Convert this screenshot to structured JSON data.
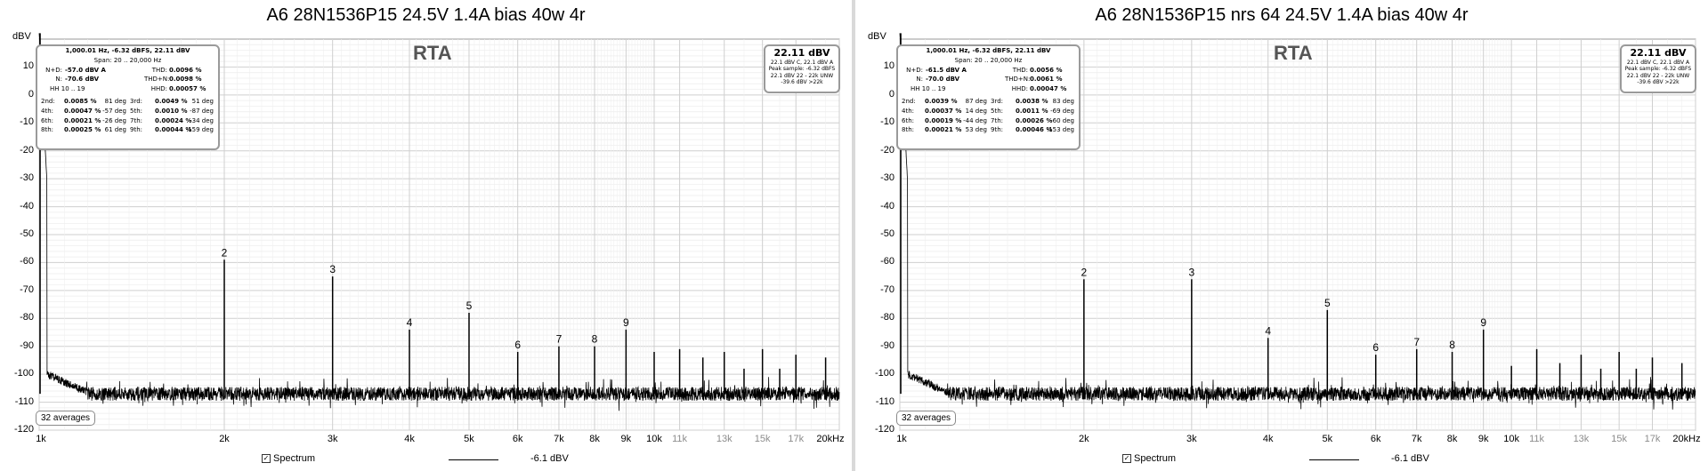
{
  "chart_data": [
    {
      "type": "line",
      "title": "A6 28N1536P15 24.5V 1.4A bias 40w 4r",
      "ylabel": "dBV",
      "xscale": "log",
      "xlim": [
        1000,
        20000
      ],
      "ylim": [
        -120,
        20
      ],
      "yticks": [
        10,
        0,
        -10,
        -20,
        -30,
        -40,
        -50,
        -60,
        -70,
        -80,
        -90,
        -100,
        -110,
        -120
      ],
      "xticks": [
        {
          "v": 1000,
          "label": "1k"
        },
        {
          "v": 2000,
          "label": "2k"
        },
        {
          "v": 3000,
          "label": "3k"
        },
        {
          "v": 4000,
          "label": "4k"
        },
        {
          "v": 5000,
          "label": "5k"
        },
        {
          "v": 6000,
          "label": "6k"
        },
        {
          "v": 7000,
          "label": "7k"
        },
        {
          "v": 8000,
          "label": "8k"
        },
        {
          "v": 9000,
          "label": "9k"
        },
        {
          "v": 10000,
          "label": "10k"
        },
        {
          "v": 11000,
          "label": "11k",
          "grey": true
        },
        {
          "v": 13000,
          "label": "13k",
          "grey": true
        },
        {
          "v": 15000,
          "label": "15k",
          "grey": true
        },
        {
          "v": 17000,
          "label": "17k",
          "grey": true
        },
        {
          "v": 20000,
          "label": "20kHz"
        }
      ],
      "grid": true,
      "rta_label": "RTA",
      "noise_floor": -107,
      "fundamental": {
        "x": 1000,
        "y": 22.11
      },
      "harmonics": [
        {
          "x": 2000,
          "y": -59,
          "label": "2"
        },
        {
          "x": 3000,
          "y": -65,
          "label": "3"
        },
        {
          "x": 4000,
          "y": -84,
          "label": "4"
        },
        {
          "x": 5000,
          "y": -78,
          "label": "5"
        },
        {
          "x": 6000,
          "y": -92,
          "label": "6"
        },
        {
          "x": 7000,
          "y": -90,
          "label": "7"
        },
        {
          "x": 8000,
          "y": -90,
          "label": "8"
        },
        {
          "x": 9000,
          "y": -84,
          "label": "9"
        },
        {
          "x": 10000,
          "y": -92,
          "label": ""
        },
        {
          "x": 11000,
          "y": -91,
          "label": ""
        },
        {
          "x": 12000,
          "y": -94,
          "label": ""
        },
        {
          "x": 13000,
          "y": -92,
          "label": ""
        },
        {
          "x": 14000,
          "y": -98,
          "label": ""
        },
        {
          "x": 15000,
          "y": -91,
          "label": ""
        },
        {
          "x": 16000,
          "y": -98,
          "label": ""
        },
        {
          "x": 17000,
          "y": -93,
          "label": ""
        },
        {
          "x": 19000,
          "y": -94,
          "label": ""
        }
      ],
      "series": [
        {
          "name": "Spectrum",
          "value_label": "-6.1 dBV"
        }
      ],
      "averages": "32 averages",
      "info": {
        "header": "1,000.01 Hz, -6.32 dBFS, 22.11 dBV",
        "span": "Span: 20 .. 20,000 Hz",
        "rows": [
          [
            "N+D:",
            "-57.0 dBV A",
            "THD:",
            "0.0096 %"
          ],
          [
            "N:",
            "-70.6 dBV",
            "THD+N:",
            "0.0098 %"
          ],
          [
            "HH 10 .. 19",
            "",
            "HHD:",
            "0.00057 %"
          ]
        ],
        "harm": [
          [
            "2nd:",
            "0.0085 %",
            "81 deg",
            "3rd:",
            "0.0049 %",
            "51 deg"
          ],
          [
            "4th:",
            "0.00047 %",
            "-57 deg",
            "5th:",
            "0.0010 %",
            "-87 deg"
          ],
          [
            "6th:",
            "0.00021 %",
            "-26 deg",
            "7th:",
            "0.00024 %",
            "-34 deg"
          ],
          [
            "8th:",
            "0.00025 %",
            "61 deg",
            "9th:",
            "0.00044 %",
            "-159 deg"
          ]
        ]
      },
      "level": {
        "value": "22.11 dBV",
        "lines": [
          "22.1 dBV C, 22.1 dBV A",
          "Peak sample: -6.32 dBFS",
          "22.1 dBV 22 - 22k UNW",
          "-39.6 dBV >22k"
        ]
      }
    },
    {
      "type": "line",
      "title": "A6 28N1536P15 nrs 64 24.5V 1.4A bias 40w 4r",
      "ylabel": "dBV",
      "xscale": "log",
      "xlim": [
        1000,
        20000
      ],
      "ylim": [
        -120,
        20
      ],
      "yticks": [
        10,
        0,
        -10,
        -20,
        -30,
        -40,
        -50,
        -60,
        -70,
        -80,
        -90,
        -100,
        -110,
        -120
      ],
      "xticks": [
        {
          "v": 1000,
          "label": "1k"
        },
        {
          "v": 2000,
          "label": "2k"
        },
        {
          "v": 3000,
          "label": "3k"
        },
        {
          "v": 4000,
          "label": "4k"
        },
        {
          "v": 5000,
          "label": "5k"
        },
        {
          "v": 6000,
          "label": "6k"
        },
        {
          "v": 7000,
          "label": "7k"
        },
        {
          "v": 8000,
          "label": "8k"
        },
        {
          "v": 9000,
          "label": "9k"
        },
        {
          "v": 10000,
          "label": "10k"
        },
        {
          "v": 11000,
          "label": "11k",
          "grey": true
        },
        {
          "v": 13000,
          "label": "13k",
          "grey": true
        },
        {
          "v": 15000,
          "label": "15k",
          "grey": true
        },
        {
          "v": 17000,
          "label": "17k",
          "grey": true
        },
        {
          "v": 20000,
          "label": "20kHz"
        }
      ],
      "grid": true,
      "rta_label": "RTA",
      "noise_floor": -107,
      "fundamental": {
        "x": 1000,
        "y": 22.11
      },
      "harmonics": [
        {
          "x": 2000,
          "y": -66,
          "label": "2"
        },
        {
          "x": 3000,
          "y": -66,
          "label": "3"
        },
        {
          "x": 4000,
          "y": -87,
          "label": "4"
        },
        {
          "x": 5000,
          "y": -77,
          "label": "5"
        },
        {
          "x": 6000,
          "y": -93,
          "label": "6"
        },
        {
          "x": 7000,
          "y": -91,
          "label": "7"
        },
        {
          "x": 8000,
          "y": -92,
          "label": "8"
        },
        {
          "x": 9000,
          "y": -84,
          "label": "9"
        },
        {
          "x": 10000,
          "y": -97,
          "label": ""
        },
        {
          "x": 11000,
          "y": -91,
          "label": ""
        },
        {
          "x": 12000,
          "y": -96,
          "label": ""
        },
        {
          "x": 13000,
          "y": -93,
          "label": ""
        },
        {
          "x": 14000,
          "y": -98,
          "label": ""
        },
        {
          "x": 15000,
          "y": -92,
          "label": ""
        },
        {
          "x": 16000,
          "y": -98,
          "label": ""
        },
        {
          "x": 17000,
          "y": -94,
          "label": ""
        },
        {
          "x": 19000,
          "y": -96,
          "label": ""
        }
      ],
      "series": [
        {
          "name": "Spectrum",
          "value_label": "-6.1 dBV"
        }
      ],
      "averages": "32 averages",
      "info": {
        "header": "1,000.01 Hz, -6.32 dBFS, 22.11 dBV",
        "span": "Span: 20 .. 20,000 Hz",
        "rows": [
          [
            "N+D:",
            "-61.5 dBV A",
            "THD:",
            "0.0056 %"
          ],
          [
            "N:",
            "-70.0 dBV",
            "THD+N:",
            "0.0061 %"
          ],
          [
            "HH 10 .. 19",
            "",
            "HHD:",
            "0.00047 %"
          ]
        ],
        "harm": [
          [
            "2nd:",
            "0.0039 %",
            "87 deg",
            "3rd:",
            "0.0038 %",
            "83 deg"
          ],
          [
            "4th:",
            "0.00037 %",
            "14 deg",
            "5th:",
            "0.0011 %",
            "-69 deg"
          ],
          [
            "6th:",
            "0.00019 %",
            "-44 deg",
            "7th:",
            "0.00026 %",
            "-60 deg"
          ],
          [
            "8th:",
            "0.00021 %",
            "53 deg",
            "9th:",
            "0.00046 %",
            "-153 deg"
          ]
        ]
      },
      "level": {
        "value": "22.11 dBV",
        "lines": [
          "22.1 dBV C, 22.1 dBV A",
          "Peak sample: -6.32 dBFS",
          "22.1 dBV 22 - 22k UNW",
          "-39.6 dBV >22k"
        ]
      }
    }
  ]
}
